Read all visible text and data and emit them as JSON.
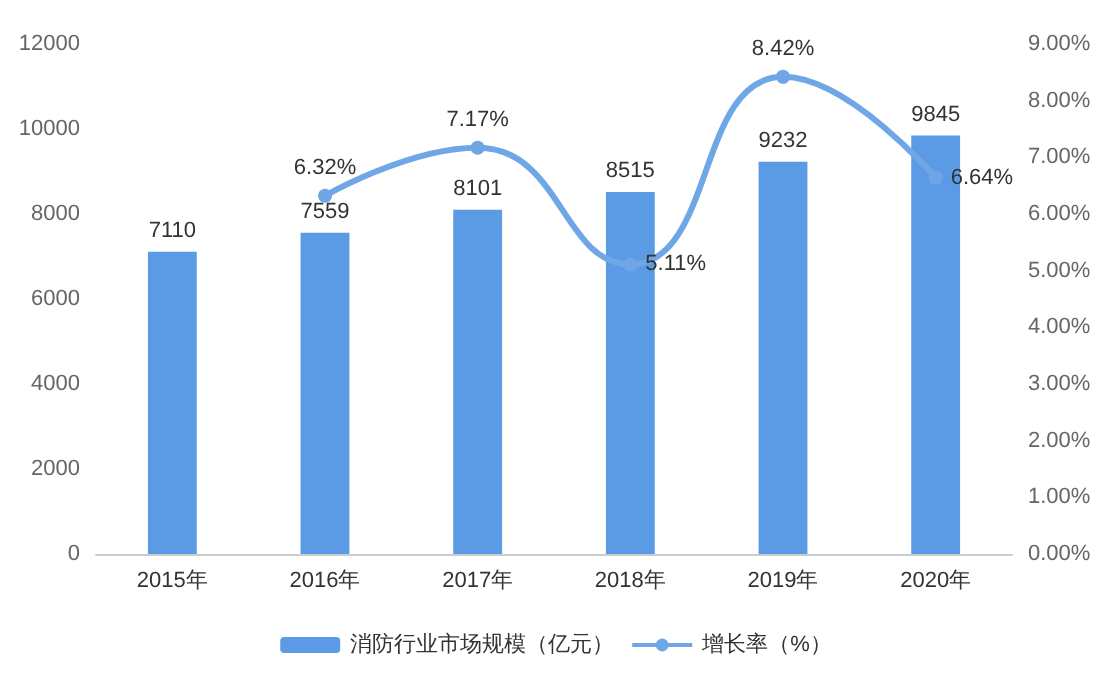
{
  "chart_data": {
    "type": "bar",
    "categories": [
      "2015年",
      "2016年",
      "2017年",
      "2018年",
      "2019年",
      "2020年"
    ],
    "series": [
      {
        "name": "消防行业市场规模（亿元）",
        "color": "#5b9be6",
        "values": [
          7110,
          7559,
          8101,
          8515,
          9232,
          9845
        ],
        "data_labels": true
      },
      {
        "name": "增长率（%）",
        "type": "line",
        "axis": "y2",
        "color": "#6ea6e6",
        "marker": "circle",
        "values": [
          null,
          6.32,
          7.17,
          5.11,
          8.42,
          6.64
        ],
        "value_labels": [
          null,
          "6.32%",
          "7.17%",
          "5.11%",
          "8.42%",
          "6.64%"
        ]
      }
    ],
    "ylim": [
      0,
      12000
    ],
    "yticks": [
      0,
      2000,
      4000,
      6000,
      8000,
      10000,
      12000
    ],
    "y2lim": [
      0,
      9
    ],
    "y2ticks": [
      {
        "value": 0,
        "label": "0.00%"
      },
      {
        "value": 1,
        "label": "1.00%"
      },
      {
        "value": 2,
        "label": "2.00%"
      },
      {
        "value": 3,
        "label": "3.00%"
      },
      {
        "value": 4,
        "label": "4.00%"
      },
      {
        "value": 5,
        "label": "5.00%"
      },
      {
        "value": 6,
        "label": "6.00%"
      },
      {
        "value": 7,
        "label": "7.00%"
      },
      {
        "value": 8,
        "label": "8.00%"
      },
      {
        "value": 9,
        "label": "9.00%"
      }
    ],
    "grid": false,
    "legend": "bottom"
  }
}
